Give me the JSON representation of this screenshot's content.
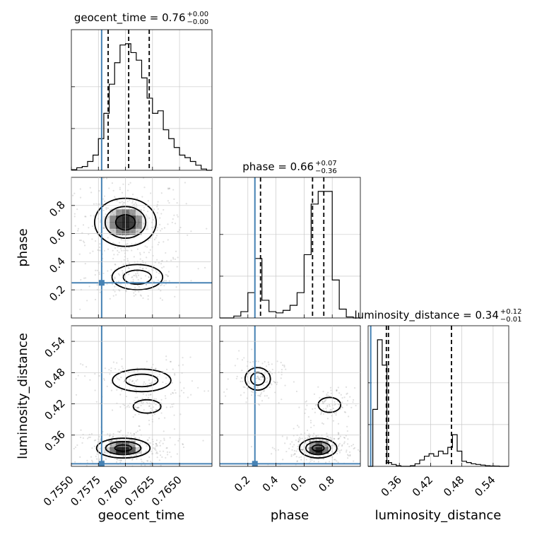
{
  "chart_data": {
    "type": "corner",
    "parameters": [
      "geocent_time",
      "phase",
      "luminosity_distance"
    ],
    "truths": {
      "geocent_time": 0.7578,
      "phase": 0.25,
      "luminosity_distance": 0.305
    },
    "colors": {
      "truth": "#4682b4",
      "hist": "#000000",
      "grid": "#c8c8c8",
      "density": "#000000"
    },
    "titles": [
      {
        "param": "geocent_time",
        "text": "geocent_time = 0.76",
        "sup": "+0.00",
        "sub": "−0.00"
      },
      {
        "param": "phase",
        "text": "phase = 0.66",
        "sup": "+0.07",
        "sub": "−0.36"
      },
      {
        "param": "luminosity_distance",
        "text": "luminosity_distance = 0.34",
        "sup": "+0.12",
        "sub": "−0.01"
      }
    ],
    "axes": {
      "geocent_time": {
        "range": [
          0.755,
          0.768
        ],
        "ticks": [
          "0.7550",
          "0.7575",
          "0.7600",
          "0.7625",
          "0.7650"
        ],
        "tick_values": [
          0.755,
          0.7575,
          0.76,
          0.7625,
          0.765
        ]
      },
      "phase": {
        "range": [
          0.0,
          1.0
        ],
        "ticks": [
          "0.2",
          "0.4",
          "0.6",
          "0.8"
        ],
        "tick_values": [
          0.2,
          0.4,
          0.6,
          0.8
        ]
      },
      "luminosity_distance": {
        "range": [
          0.3,
          0.57
        ],
        "ticks": [
          "0.36",
          "0.42",
          "0.48",
          "0.54"
        ],
        "tick_values": [
          0.36,
          0.42,
          0.48,
          0.54
        ]
      }
    },
    "histograms": {
      "geocent_time": {
        "bin_edges": [
          0.755,
          0.7555,
          0.756,
          0.7565,
          0.757,
          0.7575,
          0.758,
          0.7585,
          0.759,
          0.7595,
          0.76,
          0.7605,
          0.761,
          0.7615,
          0.762,
          0.7625,
          0.763,
          0.7635,
          0.764,
          0.7645,
          0.765,
          0.7655,
          0.766,
          0.7665,
          0.767,
          0.7675,
          0.768
        ],
        "counts": [
          0.5,
          2,
          3,
          7,
          12,
          25,
          45,
          68,
          85,
          99,
          100,
          93,
          87,
          73,
          57,
          45,
          47,
          32,
          25,
          18,
          12,
          10,
          7,
          4,
          1,
          0
        ],
        "quantiles": [
          0.7584,
          0.7603,
          0.7622
        ]
      },
      "phase": {
        "bin_edges": [
          0.0,
          0.05,
          0.1,
          0.15,
          0.2,
          0.25,
          0.3,
          0.35,
          0.4,
          0.45,
          0.5,
          0.55,
          0.6,
          0.65,
          0.7,
          0.75,
          0.8,
          0.85,
          0.9,
          0.95,
          1.0
        ],
        "counts": [
          0,
          0,
          1.5,
          5,
          20,
          47,
          14,
          5,
          4,
          6,
          10,
          20,
          50,
          90,
          100,
          100,
          30,
          7,
          0.8,
          0
        ],
        "quantiles": [
          0.29,
          0.66,
          0.74
        ]
      },
      "luminosity_distance": {
        "bin_edges": [
          0.3,
          0.309,
          0.318,
          0.327,
          0.336,
          0.345,
          0.354,
          0.363,
          0.372,
          0.381,
          0.39,
          0.399,
          0.408,
          0.417,
          0.426,
          0.435,
          0.444,
          0.453,
          0.462,
          0.471,
          0.48,
          0.489,
          0.498,
          0.507,
          0.516,
          0.525,
          0.534,
          0.543,
          0.552,
          0.561,
          0.57
        ],
        "counts": [
          0,
          45,
          100,
          80,
          3,
          1.5,
          0.5,
          0,
          0,
          0.5,
          2,
          5,
          8,
          10,
          8,
          12,
          10,
          15,
          25,
          12,
          4,
          3,
          2,
          1.5,
          1,
          0.5,
          0.3,
          0.2,
          0,
          0
        ],
        "quantiles": [
          0.335,
          0.339,
          0.46
        ]
      }
    },
    "density_2d": [
      {
        "x": "geocent_time",
        "y": "phase",
        "modes": [
          {
            "x": 0.76,
            "y": 0.68,
            "sx": 0.0015,
            "sy": 0.09,
            "w": 1.0
          },
          {
            "x": 0.7611,
            "y": 0.29,
            "sx": 0.0013,
            "sy": 0.05,
            "w": 0.45
          }
        ]
      },
      {
        "x": "geocent_time",
        "y": "luminosity_distance",
        "modes": [
          {
            "x": 0.7598,
            "y": 0.335,
            "sx": 0.0013,
            "sy": 0.01,
            "w": 1.0
          },
          {
            "x": 0.7615,
            "y": 0.465,
            "sx": 0.0015,
            "sy": 0.012,
            "w": 0.3
          },
          {
            "x": 0.762,
            "y": 0.415,
            "sx": 0.0008,
            "sy": 0.008,
            "w": 0.12
          }
        ]
      },
      {
        "x": "phase",
        "y": "luminosity_distance",
        "modes": [
          {
            "x": 0.7,
            "y": 0.335,
            "sx": 0.07,
            "sy": 0.01,
            "w": 1.0
          },
          {
            "x": 0.27,
            "y": 0.468,
            "sx": 0.05,
            "sy": 0.012,
            "w": 0.35
          },
          {
            "x": 0.78,
            "y": 0.418,
            "sx": 0.05,
            "sy": 0.009,
            "w": 0.15
          }
        ]
      }
    ]
  }
}
